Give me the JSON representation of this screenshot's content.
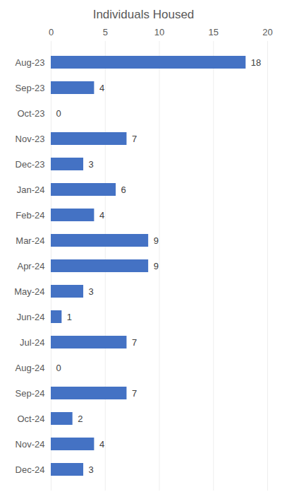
{
  "chart_data": {
    "type": "bar",
    "title": "Individuals Housed",
    "orientation": "horizontal",
    "categories": [
      "Aug-23",
      "Sep-23",
      "Oct-23",
      "Nov-23",
      "Dec-23",
      "Jan-24",
      "Feb-24",
      "Mar-24",
      "Apr-24",
      "May-24",
      "Jun-24",
      "Jul-24",
      "Aug-24",
      "Sep-24",
      "Oct-24",
      "Nov-24",
      "Dec-24"
    ],
    "values": [
      18,
      4,
      0,
      7,
      3,
      6,
      4,
      9,
      9,
      3,
      1,
      7,
      0,
      7,
      2,
      4,
      3
    ],
    "color": "#4472c4",
    "xlim": [
      0,
      20
    ],
    "xticks": [
      0,
      5,
      10,
      15,
      20
    ],
    "grid": true,
    "data_labels": true
  }
}
